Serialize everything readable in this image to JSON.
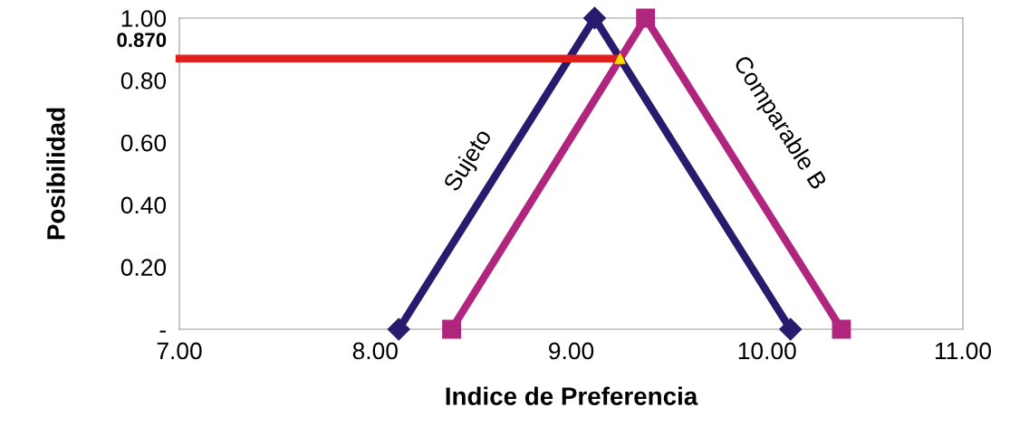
{
  "chart_data": {
    "type": "line",
    "xlabel": "Indice de Preferencia",
    "ylabel": "Posibilidad",
    "xlim": [
      7,
      11
    ],
    "xticks": [
      {
        "value": 7,
        "label": "7.00"
      },
      {
        "value": 8,
        "label": "8.00"
      },
      {
        "value": 9,
        "label": "9.00"
      },
      {
        "value": 10,
        "label": "10.00"
      },
      {
        "value": 11,
        "label": "11.00"
      }
    ],
    "ylim": [
      0,
      1
    ],
    "yticks": [
      {
        "value": 0,
        "label": "-"
      },
      {
        "value": 0.2,
        "label": "0.20"
      },
      {
        "value": 0.4,
        "label": "0.40"
      },
      {
        "value": 0.6,
        "label": "0.60"
      },
      {
        "value": 0.8,
        "label": "0.80"
      },
      {
        "value": 1,
        "label": "1.00"
      }
    ],
    "grid": false,
    "legend": false,
    "line_style": "solid",
    "series": [
      {
        "name": "Sujeto",
        "color": "#2a1a6e",
        "marker": "diamond",
        "x": [
          8.12,
          9.12,
          10.12
        ],
        "values": [
          0,
          1,
          0
        ]
      },
      {
        "name": "Comparable B",
        "color": "#b0267e",
        "marker": "square",
        "x": [
          8.39,
          9.38,
          10.38
        ],
        "values": [
          0,
          1,
          0
        ]
      },
      {
        "color": "#e0201c",
        "marker": "none",
        "x": [
          7,
          9.25
        ],
        "values": [
          0.87,
          0.87
        ]
      },
      {
        "type": "scatter",
        "color": "#f5e000",
        "marker": "triangle",
        "x": [
          9.25
        ],
        "values": [
          0.87
        ]
      }
    ],
    "annotations": [
      {
        "text": "0.870",
        "x": 7,
        "y": 0.87
      }
    ]
  }
}
